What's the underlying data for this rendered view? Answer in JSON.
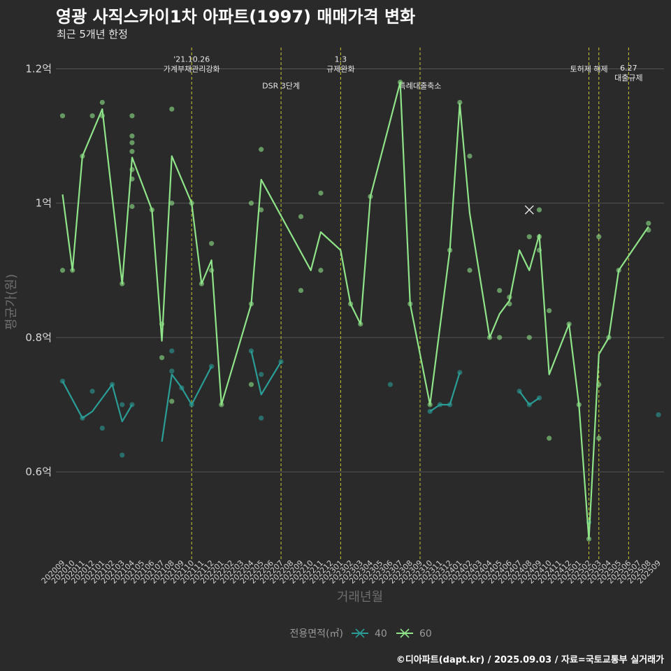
{
  "title": "영광 사직스카이1차 아파트(1997) 매매가격 변화",
  "subtitle": "최근 5개년 한정",
  "caption": "©디아파트(dapt.kr) / 2025.09.03 / 자료=국토교통부 실거래가",
  "colors": {
    "background": "#2a2a2a",
    "grid": "#555555",
    "series_40": "#2a9d96",
    "series_60": "#8fe388",
    "policy_line": "#c8c832"
  },
  "chart_data": {
    "type": "line",
    "title": "영광 사직스카이1차 아파트(1997) 매매가격 변화",
    "subtitle": "최근 5개년 한정",
    "xlabel": "거래년월",
    "ylabel": "평균가(원)",
    "ylim": [
      0.47,
      1.24
    ],
    "yticks": [
      {
        "value": 0.6,
        "label": "0.6억"
      },
      {
        "value": 0.8,
        "label": "0.8억"
      },
      {
        "value": 1.0,
        "label": "1억"
      },
      {
        "value": 1.2,
        "label": "1.2억"
      }
    ],
    "categories": [
      "202009",
      "202010",
      "202011",
      "202012",
      "202101",
      "202102",
      "202103",
      "202104",
      "202105",
      "202106",
      "202107",
      "202108",
      "202109",
      "202110",
      "202111",
      "202112",
      "202201",
      "202202",
      "202203",
      "202204",
      "202205",
      "202206",
      "202207",
      "202208",
      "202209",
      "202210",
      "202211",
      "202212",
      "202301",
      "202302",
      "202303",
      "202304",
      "202305",
      "202306",
      "202307",
      "202308",
      "202309",
      "202310",
      "202311",
      "202312",
      "202401",
      "202402",
      "202403",
      "202404",
      "202405",
      "202406",
      "202407",
      "202408",
      "202409",
      "202410",
      "202411",
      "202412",
      "202501",
      "202502",
      "202503",
      "202504",
      "202505",
      "202506",
      "202507",
      "202508",
      "202509"
    ],
    "legend_title": "전용면적(㎡)",
    "series": [
      {
        "name": "40",
        "segments": [
          [
            [
              0,
              0.735
            ],
            [
              2,
              0.68
            ],
            [
              3,
              0.69
            ],
            [
              5,
              0.73
            ],
            [
              6,
              0.675
            ],
            [
              7,
              0.7
            ]
          ],
          [
            [
              10,
              0.645
            ],
            [
              11,
              0.745
            ],
            [
              12,
              0.725
            ],
            [
              13,
              0.7
            ],
            [
              15,
              0.757
            ]
          ],
          [
            [
              19,
              0.78
            ],
            [
              20,
              0.715
            ],
            [
              22,
              0.764
            ]
          ],
          [
            [
              37,
              0.69
            ],
            [
              38,
              0.7
            ],
            [
              39,
              0.7
            ],
            [
              40,
              0.748
            ]
          ],
          [
            [
              46,
              0.72
            ],
            [
              47,
              0.7
            ],
            [
              48,
              0.71
            ]
          ]
        ],
        "points": [
          [
            0,
            0.735
          ],
          [
            2,
            0.68
          ],
          [
            3,
            0.72
          ],
          [
            4,
            0.665
          ],
          [
            5,
            0.73
          ],
          [
            6,
            0.7
          ],
          [
            6,
            0.625
          ],
          [
            7,
            0.7
          ],
          [
            11,
            0.78
          ],
          [
            11,
            0.75
          ],
          [
            12,
            0.725
          ],
          [
            13,
            0.7
          ],
          [
            15,
            0.757
          ],
          [
            19,
            0.78
          ],
          [
            20,
            0.745
          ],
          [
            20,
            0.68
          ],
          [
            22,
            0.764
          ],
          [
            33,
            0.73
          ],
          [
            37,
            0.69
          ],
          [
            38,
            0.7
          ],
          [
            39,
            0.7
          ],
          [
            40,
            0.748
          ],
          [
            46,
            0.72
          ],
          [
            47,
            0.7
          ],
          [
            48,
            0.71
          ],
          [
            53,
            0.525
          ],
          [
            60,
            0.685
          ]
        ]
      },
      {
        "name": "60",
        "segments": [
          [
            [
              0,
              1.013
            ],
            [
              1,
              0.9
            ],
            [
              2,
              1.07
            ],
            [
              4,
              1.14
            ],
            [
              6,
              0.88
            ],
            [
              7,
              1.068
            ],
            [
              9,
              0.99
            ],
            [
              10,
              0.795
            ],
            [
              11,
              1.07
            ],
            [
              13,
              1.0
            ],
            [
              14,
              0.88
            ],
            [
              15,
              0.915
            ],
            [
              16,
              0.7
            ],
            [
              19,
              0.85
            ],
            [
              20,
              1.035
            ],
            [
              25,
              0.9
            ],
            [
              26,
              0.957
            ],
            [
              28,
              0.93
            ],
            [
              29,
              0.85
            ],
            [
              30,
              0.82
            ],
            [
              31,
              1.01
            ],
            [
              34,
              1.18
            ],
            [
              35,
              0.85
            ],
            [
              37,
              0.7
            ],
            [
              39,
              0.93
            ],
            [
              40,
              1.148
            ],
            [
              41,
              0.985
            ],
            [
              43,
              0.8
            ],
            [
              44,
              0.835
            ],
            [
              45,
              0.855
            ],
            [
              46,
              0.93
            ],
            [
              47,
              0.9
            ],
            [
              48,
              0.953
            ],
            [
              49,
              0.745
            ],
            [
              51,
              0.82
            ],
            [
              52,
              0.7
            ],
            [
              53,
              0.5
            ],
            [
              54,
              0.775
            ],
            [
              55,
              0.8
            ],
            [
              56,
              0.9
            ],
            [
              59,
              0.965
            ]
          ]
        ],
        "points": [
          [
            0,
            1.13
          ],
          [
            0,
            0.9
          ],
          [
            1,
            0.9
          ],
          [
            2,
            1.07
          ],
          [
            3,
            1.13
          ],
          [
            4,
            1.15
          ],
          [
            4,
            1.13
          ],
          [
            6,
            0.88
          ],
          [
            7,
            1.13
          ],
          [
            7,
            1.1
          ],
          [
            7,
            1.09
          ],
          [
            7,
            1.077
          ],
          [
            7,
            1.05
          ],
          [
            7,
            1.036
          ],
          [
            7,
            0.995
          ],
          [
            9,
            0.99
          ],
          [
            10,
            0.77
          ],
          [
            10,
            0.82
          ],
          [
            11,
            1.14
          ],
          [
            11,
            1.0
          ],
          [
            11,
            0.705
          ],
          [
            13,
            1.0
          ],
          [
            14,
            0.88
          ],
          [
            15,
            0.94
          ],
          [
            15,
            0.9
          ],
          [
            16,
            0.7
          ],
          [
            19,
            0.85
          ],
          [
            19,
            1.0
          ],
          [
            19,
            0.73
          ],
          [
            20,
            1.08
          ],
          [
            20,
            0.99
          ],
          [
            24,
            0.98
          ],
          [
            24,
            0.87
          ],
          [
            26,
            1.015
          ],
          [
            26,
            0.9
          ],
          [
            29,
            0.85
          ],
          [
            30,
            0.82
          ],
          [
            31,
            1.01
          ],
          [
            34,
            1.18
          ],
          [
            35,
            0.85
          ],
          [
            37,
            0.7
          ],
          [
            39,
            0.93
          ],
          [
            40,
            1.15
          ],
          [
            41,
            1.07
          ],
          [
            41,
            0.9
          ],
          [
            43,
            0.8
          ],
          [
            44,
            0.87
          ],
          [
            44,
            0.8
          ],
          [
            45,
            0.85
          ],
          [
            45,
            0.86
          ],
          [
            47,
            0.95
          ],
          [
            47,
            0.8
          ],
          [
            48,
            0.99
          ],
          [
            48,
            0.93
          ],
          [
            48,
            0.95
          ],
          [
            49,
            0.84
          ],
          [
            49,
            0.65
          ],
          [
            51,
            0.82
          ],
          [
            52,
            0.7
          ],
          [
            53,
            0.5
          ],
          [
            54,
            0.95
          ],
          [
            54,
            0.73
          ],
          [
            54,
            0.65
          ],
          [
            55,
            0.8
          ],
          [
            56,
            0.9
          ],
          [
            59,
            0.97
          ],
          [
            59,
            0.96
          ]
        ]
      }
    ],
    "highlight_marker": {
      "x": 47,
      "value": 0.99,
      "shape": "x"
    },
    "policy_events": [
      {
        "x": 13,
        "lines": [
          "'21.10.26",
          "가계부채관리강화"
        ],
        "label_value": 1.2,
        "align": "middle"
      },
      {
        "x": 22,
        "lines": [
          "DSR 3단계"
        ],
        "label_value": 1.175,
        "align": "middle"
      },
      {
        "x": 28,
        "lines": [
          "1.3",
          "규제완화"
        ],
        "label_value": 1.2,
        "align": "middle"
      },
      {
        "x": 36,
        "lines": [
          "특례대출축소"
        ],
        "label_value": 1.175,
        "align": "middle"
      },
      {
        "x": 53,
        "lines": [
          "토허제 해제"
        ],
        "label_value": 1.2,
        "align": "middle"
      },
      {
        "x": 54,
        "lines": [],
        "label_value": 1.2,
        "align": "middle"
      },
      {
        "x": 57,
        "lines": [
          "6.27",
          "대출규제"
        ],
        "label_value": 1.187,
        "align": "middle"
      }
    ]
  }
}
